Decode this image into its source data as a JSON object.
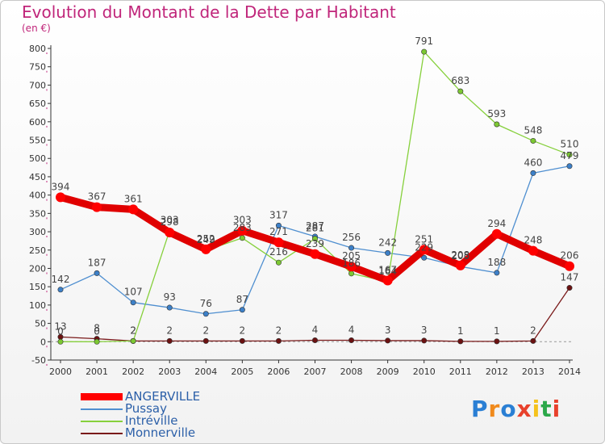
{
  "title": "Evolution du Montant de la Dette par Habitant",
  "unit": "(en €)",
  "logo_text": "Proxiti",
  "chart_data": {
    "type": "line",
    "title": "Evolution du Montant de la Dette par Habitant",
    "ylabel": "(en €)",
    "xlabel": "",
    "x": [
      "2000",
      "2001",
      "2002",
      "2003",
      "2004",
      "2005",
      "2006",
      "2007",
      "2008",
      "2009",
      "2010",
      "2011",
      "2012",
      "2013",
      "2014"
    ],
    "ylim": [
      -50,
      800
    ],
    "yticks": [
      -50,
      0,
      50,
      100,
      150,
      200,
      250,
      300,
      350,
      400,
      450,
      500,
      550,
      600,
      650,
      700,
      750,
      800
    ],
    "grid": false,
    "legend_position": "bottom-left",
    "series": [
      {
        "name": "ANGERVILLE",
        "color": "#ff0000",
        "values": [
          394,
          367,
          361,
          298,
          252,
          303,
          271,
          239,
          205,
          167,
          251,
          208,
          294,
          248,
          206
        ]
      },
      {
        "name": "Pussay",
        "color": "#4f8fd0",
        "values": [
          142,
          187,
          107,
          93,
          76,
          87,
          317,
          287,
          256,
          242,
          229,
          205,
          188,
          460,
          479
        ]
      },
      {
        "name": "Intréville",
        "color": "#86d03c",
        "values": [
          0,
          0,
          2,
          303,
          249,
          283,
          216,
          281,
          186,
          164,
          791,
          683,
          593,
          548,
          510
        ]
      },
      {
        "name": "Monnerville",
        "color": "#7a1a1a",
        "values": [
          13,
          8,
          2,
          2,
          2,
          2,
          2,
          4,
          4,
          3,
          3,
          1,
          1,
          2,
          147
        ]
      }
    ]
  }
}
